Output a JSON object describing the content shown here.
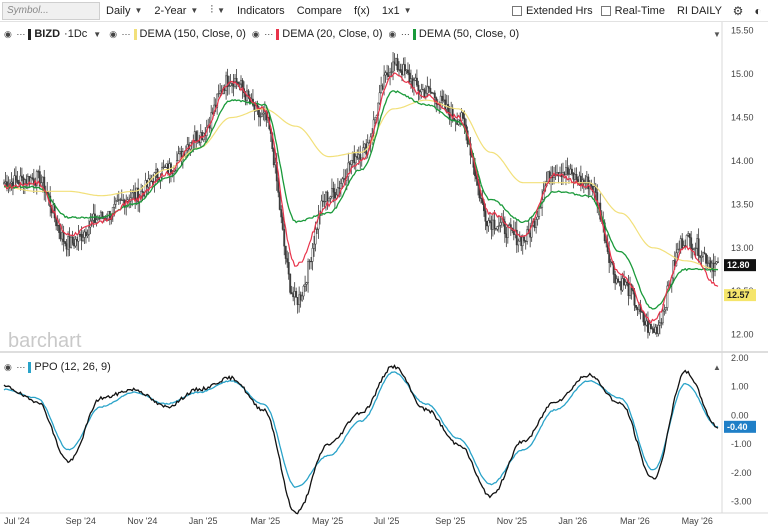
{
  "toolbar": {
    "symbol_placeholder": "Symbol...",
    "period": "Daily",
    "range": "2-Year",
    "indicators": "Indicators",
    "compare": "Compare",
    "fx": "f(x)",
    "layout": "1x1",
    "extended_hours": "Extended Hrs",
    "real_time": "Real-Time",
    "template": "RI DAILY",
    "icons": [
      "bar-type-icon",
      "settings-icon",
      "theme-toggle-icon"
    ]
  },
  "legend": {
    "symbol": "BIZD",
    "interval": "1Dc",
    "studies": [
      {
        "label": "DEMA (150, Close, 0)",
        "color": "#f2e07a"
      },
      {
        "label": "DEMA (20, Close, 0)",
        "color": "#e8334a"
      },
      {
        "label": "DEMA (50, Close, 0)",
        "color": "#1a9a3a"
      }
    ],
    "ppo": {
      "label": "PPO (12, 26, 9)",
      "color": "#2aa3c9"
    }
  },
  "watermark": "barchart",
  "price_axis": [
    "15.50",
    "15.00",
    "14.50",
    "14.00",
    "13.50",
    "13.00",
    "12.50",
    "12.00"
  ],
  "ppo_axis": [
    "2.00",
    "1.00",
    "0.00",
    "-1.00",
    "-2.00",
    "-3.00"
  ],
  "last_price_badge": "12.80",
  "dema_badge": "12.57",
  "ppo_badge": "-0.40",
  "x_labels": [
    "Jul '24",
    "Sep '24",
    "Nov '24",
    "Jan '25",
    "Mar '25",
    "May '25",
    "Jul '25",
    "Sep '25",
    "Nov '25",
    "Jan '26",
    "Mar '26",
    "May '26"
  ],
  "colors": {
    "candle": "#3a3a3a",
    "dema150": "#f2e07a",
    "dema20": "#e8334a",
    "dema50": "#1a9a3a",
    "ppo_line": "#111111",
    "ppo_signal": "#2aa3c9",
    "badge_dark": "#111111",
    "badge_yellow": "#f5e56b",
    "badge_blue": "#1f7fc7"
  },
  "chart_data": [
    {
      "type": "line",
      "series": [
        {
          "name": "BIZD",
          "x": [
            "Jul '24",
            "Aug '24",
            "Sep '24",
            "Oct '24",
            "Nov '24",
            "Dec '24",
            "Jan '25",
            "Feb '25",
            "Mar '25",
            "Apr '25",
            "May '25",
            "Jun '25",
            "Jul '25",
            "Aug '25",
            "Sep '25",
            "Oct '25",
            "Nov '25",
            "Dec '25",
            "Jan '26",
            "Feb '26",
            "Mar '26",
            "Apr '26",
            "May '26"
          ],
          "values": [
            13.75,
            13.8,
            13.05,
            13.35,
            13.6,
            13.9,
            14.3,
            14.95,
            14.5,
            12.4,
            13.6,
            14.1,
            15.1,
            14.8,
            14.5,
            13.3,
            13.1,
            13.9,
            13.75,
            12.6,
            12.05,
            13.1,
            12.8
          ]
        },
        {
          "name": "DEMA (20, Close, 0)",
          "values": [
            13.7,
            13.75,
            13.15,
            13.3,
            13.55,
            13.85,
            14.25,
            14.9,
            14.6,
            12.8,
            13.5,
            14.0,
            15.0,
            14.75,
            14.5,
            13.4,
            13.15,
            13.85,
            13.7,
            12.7,
            12.15,
            13.0,
            12.57
          ]
        },
        {
          "name": "DEMA (50, Close, 0)",
          "values": [
            13.7,
            13.7,
            13.35,
            13.35,
            13.5,
            13.8,
            14.15,
            14.7,
            14.65,
            13.3,
            13.4,
            13.9,
            14.8,
            14.65,
            14.45,
            13.55,
            13.3,
            13.65,
            13.6,
            12.95,
            12.3,
            12.75,
            12.75
          ]
        },
        {
          "name": "DEMA (150, Close, 0)",
          "values": [
            13.7,
            13.65,
            13.65,
            13.6,
            13.65,
            13.9,
            14.15,
            14.5,
            14.6,
            14.4,
            14.05,
            14.1,
            14.6,
            14.7,
            14.6,
            14.1,
            13.75,
            13.75,
            13.75,
            13.4,
            13.0,
            12.85,
            12.75
          ]
        }
      ],
      "ylim": [
        11.8,
        15.6
      ]
    },
    {
      "type": "line",
      "series": [
        {
          "name": "PPO (12, 26, 9)",
          "x": [
            "Jul '24",
            "Aug '24",
            "Sep '24",
            "Oct '24",
            "Nov '24",
            "Dec '24",
            "Jan '25",
            "Feb '25",
            "Mar '25",
            "Apr '25",
            "May '25",
            "Jun '25",
            "Jul '25",
            "Aug '25",
            "Sep '25",
            "Oct '25",
            "Nov '25",
            "Dec '25",
            "Jan '26",
            "Feb '26",
            "Mar '26",
            "Apr '26",
            "May '26"
          ],
          "values": [
            1.0,
            0.5,
            -1.6,
            0.6,
            0.9,
            0.3,
            0.9,
            1.3,
            0.2,
            -3.4,
            -1.0,
            0.1,
            1.7,
            0.2,
            -1.0,
            -2.8,
            -0.9,
            0.5,
            1.4,
            0.4,
            -2.2,
            1.5,
            -0.4
          ]
        },
        {
          "name": "Signal",
          "values": [
            0.9,
            0.6,
            -1.2,
            0.3,
            0.8,
            0.4,
            0.8,
            1.2,
            0.4,
            -2.5,
            -1.4,
            -0.2,
            1.5,
            0.4,
            -0.8,
            -2.4,
            -1.2,
            0.2,
            1.2,
            0.6,
            -1.9,
            1.1,
            -0.4
          ]
        }
      ],
      "ylim": [
        -3.4,
        2.1
      ]
    }
  ]
}
